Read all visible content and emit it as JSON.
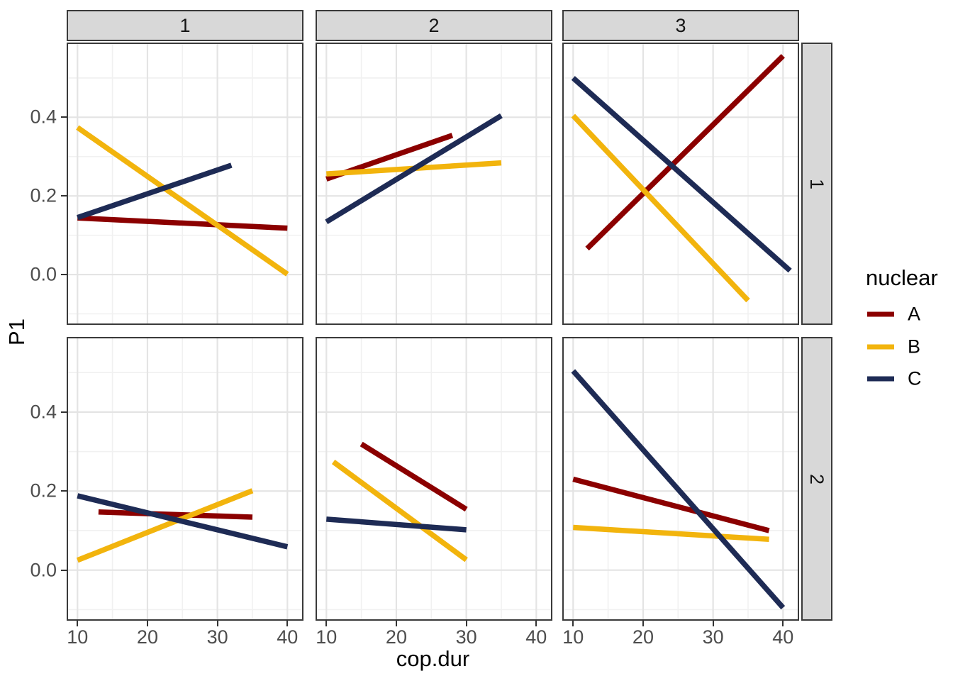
{
  "figure": {
    "background": "#FFFFFF",
    "panel_background": "#FFFFFF",
    "panel_border_color": "#3A3A3A",
    "strip_fill": "#D8D8D8",
    "grid_major_color": "#E4E4E4",
    "grid_minor_color": "#F1F1F1",
    "tick_color": "#333333",
    "tick_label_color": "#4D4D4D",
    "text_color": "#000000"
  },
  "chart_data": {
    "type": "line",
    "title": "",
    "xlabel": "cop.dur",
    "ylabel": "P1",
    "facet_col_labels": [
      "1",
      "2",
      "3"
    ],
    "facet_row_labels": [
      "1",
      "2"
    ],
    "x_tick_values": [
      10,
      20,
      30,
      40
    ],
    "x_tick_labels": [
      "10",
      "20",
      "30",
      "40"
    ],
    "y_tick_values": [
      0.0,
      0.2,
      0.4
    ],
    "y_tick_labels": [
      "0.0",
      "0.2",
      "0.4"
    ],
    "x_minor_values": [
      15,
      25,
      35
    ],
    "y_minor_values": [
      -0.1,
      0.1,
      0.3,
      0.5
    ],
    "xlim": [
      8.45,
      42.3
    ],
    "ylim": [
      -0.128,
      0.59
    ],
    "grid": true,
    "legend": {
      "title": "nuclear",
      "position": "right",
      "entries": [
        {
          "label": "A",
          "color": "#8B0000"
        },
        {
          "label": "B",
          "color": "#F2B40D"
        },
        {
          "label": "C",
          "color": "#1E2B55"
        }
      ]
    },
    "panels": [
      {
        "row": "1",
        "col": "1",
        "series": [
          {
            "name": "A",
            "x": [
              10,
              40
            ],
            "y": [
              0.144,
              0.118
            ]
          },
          {
            "name": "B",
            "x": [
              10,
              40
            ],
            "y": [
              0.374,
              0.001
            ]
          },
          {
            "name": "C",
            "x": [
              10,
              32
            ],
            "y": [
              0.145,
              0.278
            ]
          }
        ]
      },
      {
        "row": "1",
        "col": "2",
        "series": [
          {
            "name": "A",
            "x": [
              10,
              28
            ],
            "y": [
              0.243,
              0.354
            ]
          },
          {
            "name": "B",
            "x": [
              10,
              35
            ],
            "y": [
              0.256,
              0.284
            ]
          },
          {
            "name": "C",
            "x": [
              10,
              35
            ],
            "y": [
              0.134,
              0.404
            ]
          }
        ]
      },
      {
        "row": "1",
        "col": "3",
        "series": [
          {
            "name": "A",
            "x": [
              12,
              40
            ],
            "y": [
              0.066,
              0.556
            ]
          },
          {
            "name": "B",
            "x": [
              10,
              35
            ],
            "y": [
              0.404,
              -0.066
            ]
          },
          {
            "name": "C",
            "x": [
              10,
              41
            ],
            "y": [
              0.5,
              0.01
            ]
          }
        ]
      },
      {
        "row": "2",
        "col": "1",
        "series": [
          {
            "name": "A",
            "x": [
              13,
              35
            ],
            "y": [
              0.147,
              0.134
            ]
          },
          {
            "name": "B",
            "x": [
              10,
              35
            ],
            "y": [
              0.025,
              0.201
            ]
          },
          {
            "name": "C",
            "x": [
              10,
              40
            ],
            "y": [
              0.188,
              0.059
            ]
          }
        ]
      },
      {
        "row": "2",
        "col": "2",
        "series": [
          {
            "name": "A",
            "x": [
              15,
              30
            ],
            "y": [
              0.319,
              0.154
            ]
          },
          {
            "name": "B",
            "x": [
              11,
              30
            ],
            "y": [
              0.274,
              0.026
            ]
          },
          {
            "name": "C",
            "x": [
              10,
              30
            ],
            "y": [
              0.129,
              0.102
            ]
          }
        ]
      },
      {
        "row": "2",
        "col": "3",
        "series": [
          {
            "name": "A",
            "x": [
              10,
              38
            ],
            "y": [
              0.23,
              0.1
            ]
          },
          {
            "name": "B",
            "x": [
              10,
              38
            ],
            "y": [
              0.108,
              0.078
            ]
          },
          {
            "name": "C",
            "x": [
              10,
              40
            ],
            "y": [
              0.504,
              -0.095
            ]
          }
        ]
      }
    ]
  }
}
